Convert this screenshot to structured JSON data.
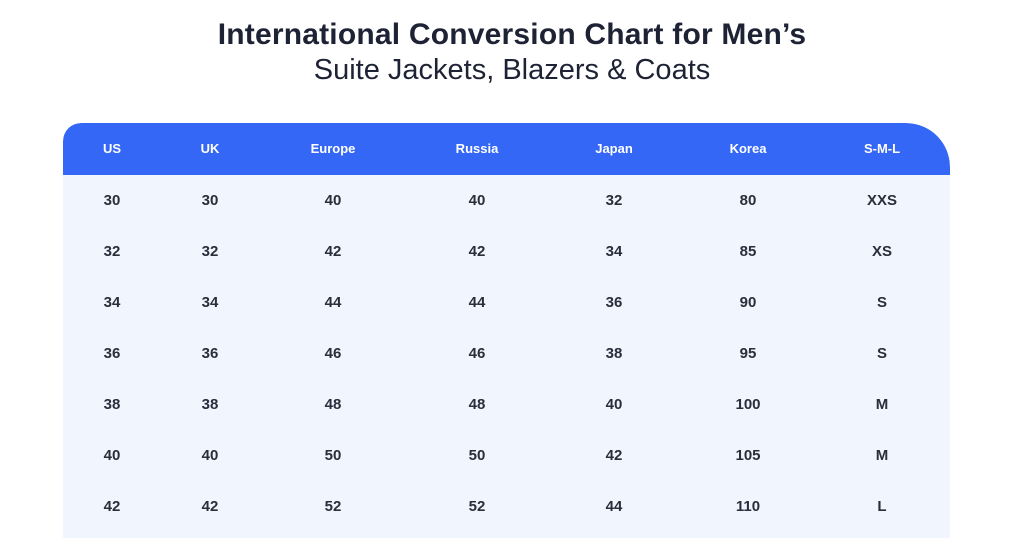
{
  "title": "International Conversion Chart for Men’s",
  "subtitle": "Suite Jackets, Blazers & Coats",
  "table": {
    "headers": [
      "US",
      "UK",
      "Europe",
      "Russia",
      "Japan",
      "Korea",
      "S-M-L"
    ],
    "rows": [
      [
        "30",
        "30",
        "40",
        "40",
        "32",
        "80",
        "XXS"
      ],
      [
        "32",
        "32",
        "42",
        "42",
        "34",
        "85",
        "XS"
      ],
      [
        "34",
        "34",
        "44",
        "44",
        "36",
        "90",
        "S"
      ],
      [
        "36",
        "36",
        "46",
        "46",
        "38",
        "95",
        "S"
      ],
      [
        "38",
        "38",
        "48",
        "48",
        "40",
        "100",
        "M"
      ],
      [
        "40",
        "40",
        "50",
        "50",
        "42",
        "105",
        "M"
      ],
      [
        "42",
        "42",
        "52",
        "52",
        "44",
        "110",
        "L"
      ]
    ]
  },
  "colors": {
    "header_bg": "#3567f6",
    "body_bg": "#f0f5fe",
    "text": "#1e2235"
  }
}
